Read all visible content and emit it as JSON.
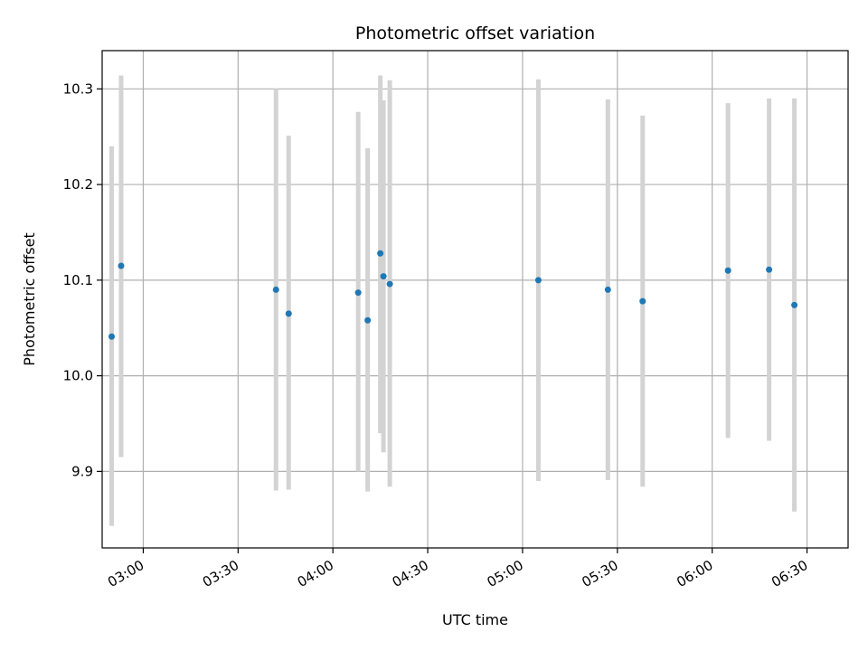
{
  "chart_data": {
    "type": "scatter",
    "title": "Photometric offset variation",
    "xlabel": "UTC time",
    "ylabel": "Photometric offset",
    "xlim": [
      "02:47",
      "06:43"
    ],
    "ylim": [
      9.82,
      10.34
    ],
    "grid": true,
    "x_ticks": [
      "03:00",
      "03:30",
      "04:00",
      "04:30",
      "05:00",
      "05:30",
      "06:00",
      "06:30"
    ],
    "y_ticks": [
      9.9,
      10.0,
      10.1,
      10.2,
      10.3
    ],
    "y_tick_labels": [
      "9.9",
      "10.0",
      "10.1",
      "10.2",
      "10.3"
    ],
    "colors": {
      "points": "#1f77b4",
      "errorbars": "#d3d3d3"
    },
    "series": [
      {
        "points": [
          {
            "x": "02:50",
            "y": 10.041,
            "err_low": 9.843,
            "err_high": 10.24
          },
          {
            "x": "02:53",
            "y": 10.115,
            "err_low": 9.915,
            "err_high": 10.314
          },
          {
            "x": "03:42",
            "y": 10.09,
            "err_low": 9.88,
            "err_high": 10.3
          },
          {
            "x": "03:46",
            "y": 10.065,
            "err_low": 9.881,
            "err_high": 10.251
          },
          {
            "x": "04:08",
            "y": 10.087,
            "err_low": 9.9,
            "err_high": 10.276
          },
          {
            "x": "04:11",
            "y": 10.058,
            "err_low": 9.879,
            "err_high": 10.238
          },
          {
            "x": "04:15",
            "y": 10.128,
            "err_low": 9.94,
            "err_high": 10.314
          },
          {
            "x": "04:16",
            "y": 10.104,
            "err_low": 9.92,
            "err_high": 10.288
          },
          {
            "x": "04:18",
            "y": 10.096,
            "err_low": 9.884,
            "err_high": 10.309
          },
          {
            "x": "05:05",
            "y": 10.1,
            "err_low": 9.89,
            "err_high": 10.31
          },
          {
            "x": "05:27",
            "y": 10.09,
            "err_low": 9.891,
            "err_high": 10.289
          },
          {
            "x": "05:38",
            "y": 10.078,
            "err_low": 9.884,
            "err_high": 10.272
          },
          {
            "x": "06:05",
            "y": 10.11,
            "err_low": 9.935,
            "err_high": 10.285
          },
          {
            "x": "06:18",
            "y": 10.111,
            "err_low": 9.932,
            "err_high": 10.29
          },
          {
            "x": "06:26",
            "y": 10.074,
            "err_low": 9.858,
            "err_high": 10.29
          }
        ]
      }
    ]
  }
}
